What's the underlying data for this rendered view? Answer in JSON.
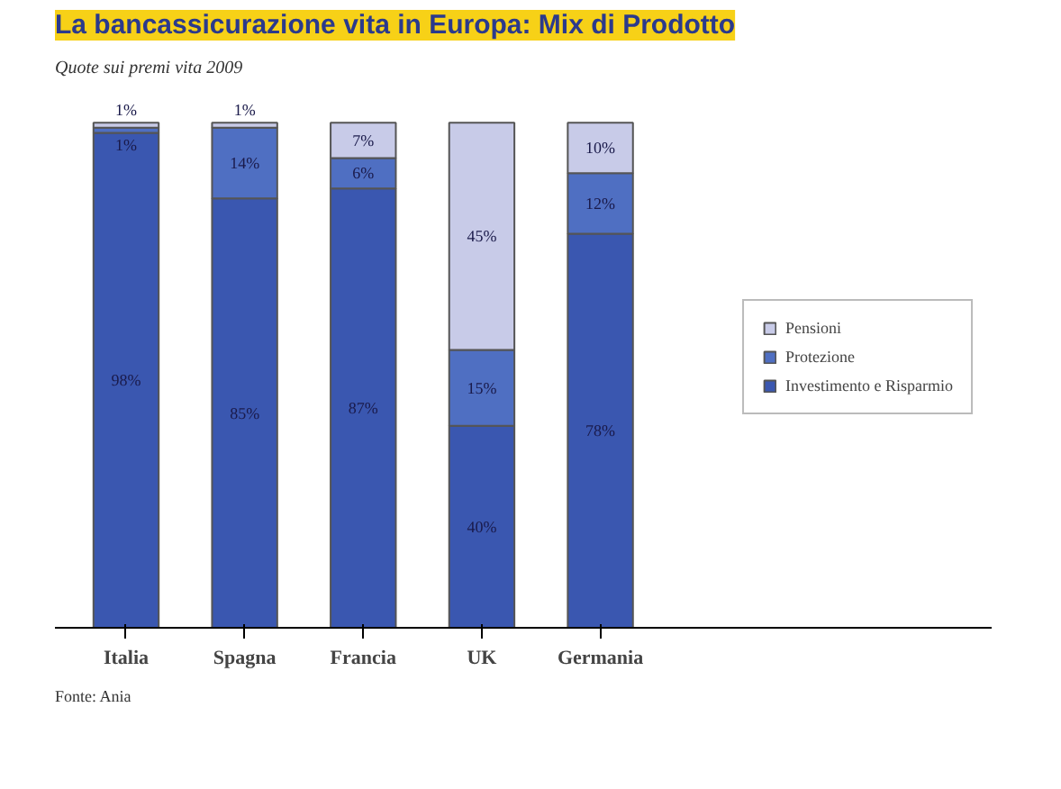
{
  "chart_data": {
    "type": "bar",
    "stacked": true,
    "title": "La bancassicurazione vita in Europa: Mix di Prodotto",
    "subtitle": "Quote sui premi vita 2009",
    "categories": [
      "Italia",
      "Spagna",
      "Francia",
      "UK",
      "Germania"
    ],
    "series": [
      {
        "name": "Investimento e Risparmio",
        "color": "#3a57b0",
        "values": [
          98,
          85,
          87,
          40,
          78
        ],
        "value_labels": [
          "98%",
          "85%",
          "87%",
          "40%",
          "78%"
        ]
      },
      {
        "name": "Protezione",
        "color": "#4f6fc2",
        "values": [
          1,
          14,
          6,
          15,
          12
        ],
        "value_labels": [
          "1%",
          "14%",
          "6%",
          "15%",
          "12%"
        ]
      },
      {
        "name": "Pensioni",
        "color": "#c8cbe8",
        "values": [
          1,
          1,
          7,
          45,
          10
        ],
        "value_labels": [
          "1%",
          "1%",
          "7%",
          "45%",
          "10%"
        ]
      }
    ],
    "data_labels": true,
    "legend": "right",
    "grid": false,
    "annotations": [
      "Fonte: Ania"
    ]
  }
}
